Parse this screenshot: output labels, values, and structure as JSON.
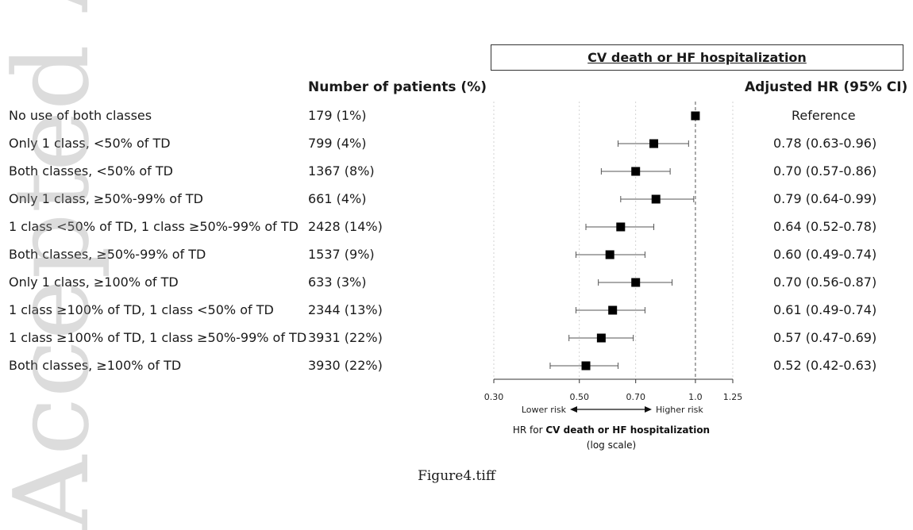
{
  "figure": {
    "outcome_box": "CV death or HF hospitalization",
    "col_patients": "Number of patients (%)",
    "col_hr": "Adjusted HR (95% CI)",
    "caption": "Figure4.tiff",
    "watermark": "Accepted Article"
  },
  "chart_data": {
    "type": "forest",
    "xscale": "log",
    "xlim": [
      0.3,
      1.25
    ],
    "xticks": [
      0.3,
      0.5,
      0.7,
      1.0,
      1.25
    ],
    "xtick_labels": [
      "0.30",
      "0.50",
      "0.70",
      "1.0",
      "1.25"
    ],
    "reference_line": 1.0,
    "lower_label": "Lower risk",
    "higher_label": "Higher risk",
    "xlabel_prefix": "HR for",
    "xlabel_bold": "CV death or HF hospitalization",
    "xlabel_sub": "(log scale)",
    "rows": [
      {
        "label": "No use of both classes",
        "patients": "179 (1%)",
        "hr": 1.0,
        "lo": null,
        "hi": null,
        "hr_text": "Reference"
      },
      {
        "label": "Only 1 class, <50% of TD",
        "patients": "799 (4%)",
        "hr": 0.78,
        "lo": 0.63,
        "hi": 0.96,
        "hr_text": "0.78 (0.63-0.96)"
      },
      {
        "label": "Both classes, <50% of TD",
        "patients": "1367 (8%)",
        "hr": 0.7,
        "lo": 0.57,
        "hi": 0.86,
        "hr_text": "0.70 (0.57-0.86)"
      },
      {
        "label": "Only 1 class, ≥50%-99% of TD",
        "patients": "661 (4%)",
        "hr": 0.79,
        "lo": 0.64,
        "hi": 0.99,
        "hr_text": "0.79 (0.64-0.99)"
      },
      {
        "label": "1 class <50% of TD, 1 class ≥50%-99% of TD",
        "patients": "2428 (14%)",
        "hr": 0.64,
        "lo": 0.52,
        "hi": 0.78,
        "hr_text": "0.64 (0.52-0.78)"
      },
      {
        "label": "Both classes, ≥50%-99% of TD",
        "patients": "1537 (9%)",
        "hr": 0.6,
        "lo": 0.49,
        "hi": 0.74,
        "hr_text": "0.60 (0.49-0.74)"
      },
      {
        "label": "Only 1 class, ≥100% of TD",
        "patients": "633 (3%)",
        "hr": 0.7,
        "lo": 0.56,
        "hi": 0.87,
        "hr_text": "0.70 (0.56-0.87)"
      },
      {
        "label": "1 class ≥100% of TD, 1 class <50% of TD",
        "patients": "2344 (13%)",
        "hr": 0.61,
        "lo": 0.49,
        "hi": 0.74,
        "hr_text": "0.61 (0.49-0.74)"
      },
      {
        "label": "1 class ≥100% of TD, 1 class ≥50%-99% of TD",
        "patients": "3931 (22%)",
        "hr": 0.57,
        "lo": 0.47,
        "hi": 0.69,
        "hr_text": "0.57 (0.47-0.69)"
      },
      {
        "label": "Both classes, ≥100% of TD",
        "patients": "3930 (22%)",
        "hr": 0.52,
        "lo": 0.42,
        "hi": 0.63,
        "hr_text": "0.52 (0.42-0.63)"
      }
    ]
  }
}
